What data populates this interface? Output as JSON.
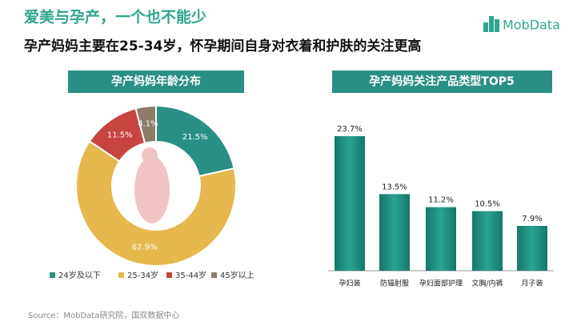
{
  "header": {
    "title": "爱美与孕产，一个也不能少",
    "subtitle": "孕产妈妈主要在25-34岁，怀孕期间自身对衣着和护肤的关注更高",
    "logo": "MobData"
  },
  "chart_data": [
    {
      "type": "donut",
      "title": "孕产妈妈年龄分布",
      "categories": [
        "24岁及以下",
        "25-34岁",
        "35-44岁",
        "45岁以上"
      ],
      "values": [
        21.5,
        62.9,
        11.5,
        4.1
      ],
      "value_labels": [
        "21.5%",
        "62.9%",
        "11.5%",
        "4.1%"
      ],
      "colors": [
        "#2a8f84",
        "#e6b84e",
        "#c8443f",
        "#8e7b69"
      ]
    },
    {
      "type": "bar",
      "title": "孕产妈妈关注产品类型TOP5",
      "categories": [
        "孕妇装",
        "防辐射服",
        "孕妇面部护理",
        "文胸/内裤",
        "月子装"
      ],
      "values": [
        23.7,
        13.5,
        11.2,
        10.5,
        7.9
      ],
      "value_labels": [
        "23.7%",
        "13.5%",
        "11.2%",
        "10.5%",
        "7.9%"
      ],
      "color": "#1e9282"
    }
  ],
  "source": "Source：MobData研究院，国双数据中心"
}
